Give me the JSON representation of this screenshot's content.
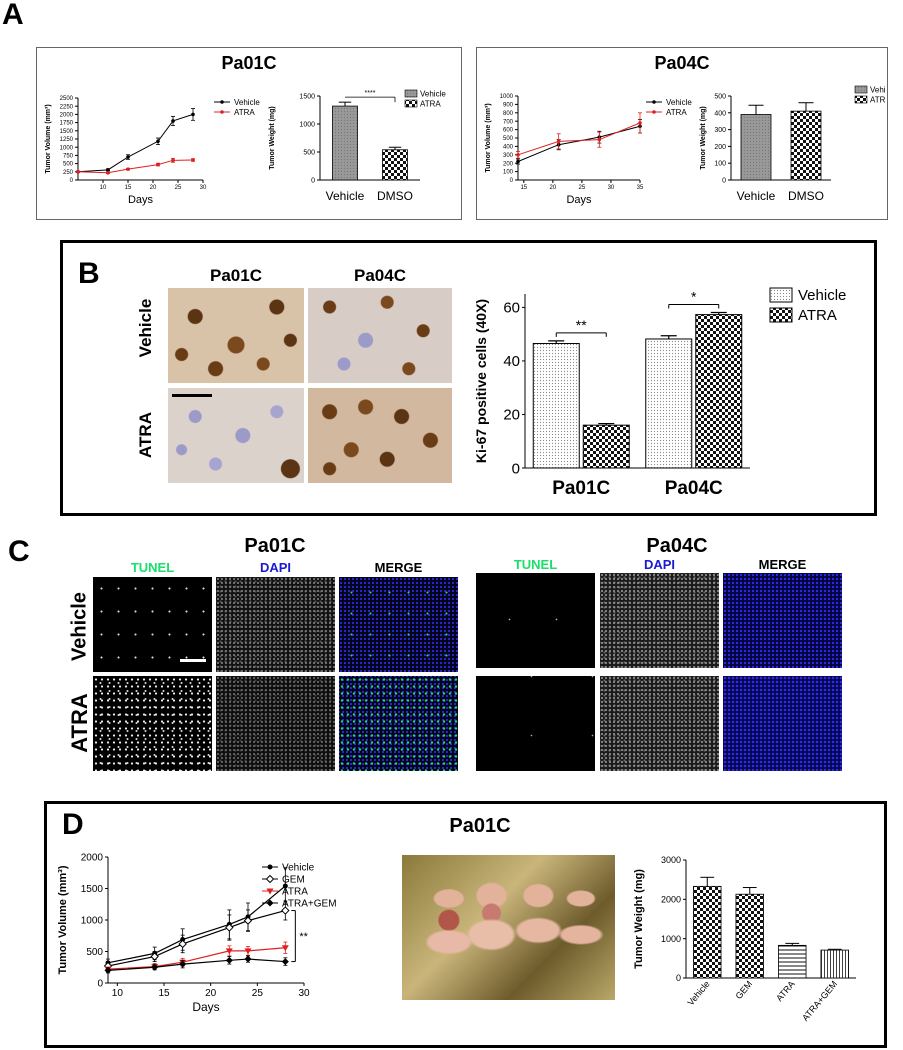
{
  "panels": {
    "a": {
      "letter": "A"
    },
    "b": {
      "letter": "B"
    },
    "c": {
      "letter": "C"
    },
    "d": {
      "letter": "D"
    }
  },
  "panelA": {
    "left_title": "Pa01C",
    "right_title": "Pa04C"
  },
  "panelB": {
    "col1": "Pa01C",
    "col2": "Pa04C",
    "row1": "Vehicle",
    "row2": "ATRA"
  },
  "panelC": {
    "title_left": "Pa01C",
    "title_right": "Pa04C",
    "col_tunel": "TUNEL",
    "col_dapi": "DAPI",
    "col_merge": "MERGE",
    "row1": "Vehicle",
    "row2": "ATRA",
    "colors": {
      "tunel": "#19e06a",
      "dapi": "#1a1ad0"
    }
  },
  "panelD": {
    "title": "Pa01C"
  },
  "chart_data": [
    {
      "id": "A1",
      "type": "line",
      "xlabel": "Days",
      "ylabel": "Tumor Volume (mm³)",
      "xlim": [
        5,
        30
      ],
      "ylim": [
        0,
        2500
      ],
      "xticks": [
        10,
        15,
        20,
        25,
        30
      ],
      "yticks": [
        0,
        250,
        500,
        750,
        1000,
        1250,
        1500,
        1750,
        2000,
        2250,
        2500
      ],
      "legend_position": "top-right",
      "series": [
        {
          "name": "Vehicle",
          "color": "#000000",
          "x": [
            5,
            11,
            15,
            21,
            24,
            28
          ],
          "y": [
            250,
            310,
            700,
            1180,
            1800,
            2000
          ],
          "err": [
            20,
            30,
            70,
            100,
            140,
            180
          ]
        },
        {
          "name": "ATRA",
          "color": "#e02020",
          "x": [
            5,
            11,
            15,
            21,
            24,
            28
          ],
          "y": [
            250,
            220,
            330,
            470,
            600,
            610
          ],
          "err": [
            15,
            20,
            25,
            40,
            60,
            40
          ]
        }
      ]
    },
    {
      "id": "A2",
      "type": "bar",
      "categories": [
        "Vehicle",
        "DMSO"
      ],
      "ylabel": "Tumor Weight (mg)",
      "ylim": [
        0,
        1500
      ],
      "yticks": [
        0,
        500,
        1000,
        1500
      ],
      "values": [
        1320,
        540
      ],
      "err": [
        70,
        45
      ],
      "legend": [
        "Vehicle",
        "ATRA"
      ],
      "significance": "****"
    },
    {
      "id": "A3",
      "type": "line",
      "xlabel": "Days",
      "ylabel": "Tumor Volume (mm³)",
      "xlim": [
        14,
        35
      ],
      "ylim": [
        0,
        1000
      ],
      "xticks": [
        15,
        20,
        25,
        30,
        35
      ],
      "yticks": [
        0,
        100,
        200,
        300,
        400,
        500,
        600,
        700,
        800,
        900,
        1000
      ],
      "legend_position": "top-right",
      "series": [
        {
          "name": "Vehicle",
          "color": "#000000",
          "x": [
            14,
            21,
            28,
            35
          ],
          "y": [
            220,
            420,
            510,
            640
          ],
          "err": [
            30,
            60,
            70,
            80
          ]
        },
        {
          "name": "ATRA",
          "color": "#e02020",
          "x": [
            14,
            21,
            28,
            35
          ],
          "y": [
            300,
            460,
            480,
            680
          ],
          "err": [
            40,
            90,
            90,
            120
          ]
        }
      ]
    },
    {
      "id": "A4",
      "type": "bar",
      "categories": [
        "Vehicle",
        "DMSO"
      ],
      "ylabel": "Tumor Weight (mg)",
      "ylim": [
        0,
        500
      ],
      "yticks": [
        0,
        100,
        200,
        300,
        400,
        500
      ],
      "values": [
        390,
        410
      ],
      "err": [
        55,
        50
      ],
      "legend": [
        "Vehicle",
        "ATRA"
      ]
    },
    {
      "id": "B1",
      "type": "bar",
      "categories": [
        "Pa01C",
        "Pa04C"
      ],
      "ylabel": "Ki-67 positive cells (40X)",
      "ylim": [
        0,
        65
      ],
      "yticks": [
        0,
        20,
        40,
        60
      ],
      "series": [
        {
          "name": "Vehicle",
          "values": [
            46.5,
            48.2
          ],
          "err": [
            1,
            1.2
          ]
        },
        {
          "name": "ATRA",
          "values": [
            16,
            57.3
          ],
          "err": [
            0.6,
            0.8
          ]
        }
      ],
      "significance": [
        "**",
        "*"
      ]
    },
    {
      "id": "D1",
      "type": "line",
      "xlabel": "Days",
      "ylabel": "Tumor Volume (mm³)",
      "xlim": [
        9,
        30
      ],
      "ylim": [
        0,
        2000
      ],
      "xticks": [
        10,
        15,
        20,
        25,
        30
      ],
      "yticks": [
        0,
        500,
        1000,
        1500,
        2000
      ],
      "significance": "**",
      "series": [
        {
          "name": "Vehicle",
          "color": "#000000",
          "marker": "circle",
          "x": [
            9,
            14,
            17,
            22,
            24,
            28
          ],
          "y": [
            320,
            470,
            690,
            930,
            1050,
            1540
          ],
          "err": [
            60,
            100,
            170,
            230,
            220,
            290
          ]
        },
        {
          "name": "GEM",
          "color": "#000000",
          "marker": "open-diamond",
          "x": [
            9,
            14,
            17,
            22,
            24,
            28
          ],
          "y": [
            270,
            420,
            620,
            880,
            990,
            1150
          ],
          "err": [
            60,
            80,
            140,
            200,
            170,
            150
          ]
        },
        {
          "name": "ATRA",
          "color": "#e02020",
          "marker": "triangle-down",
          "x": [
            9,
            14,
            17,
            22,
            24,
            28
          ],
          "y": [
            220,
            260,
            330,
            510,
            510,
            560
          ],
          "err": [
            30,
            50,
            60,
            80,
            70,
            90
          ]
        },
        {
          "name": "ATRA+GEM",
          "color": "#000000",
          "marker": "diamond",
          "x": [
            9,
            14,
            17,
            22,
            24,
            28
          ],
          "y": [
            200,
            250,
            300,
            360,
            380,
            340
          ],
          "err": [
            40,
            40,
            60,
            60,
            50,
            60
          ]
        }
      ]
    },
    {
      "id": "D2",
      "type": "bar",
      "categories": [
        "Vehicle",
        "GEM",
        "ATRA",
        "ATRA+GEM"
      ],
      "ylabel": "Tumor Weight (mg)",
      "ylim": [
        0,
        3000
      ],
      "yticks": [
        0,
        1000,
        2000,
        3000
      ],
      "values": [
        2330,
        2130,
        830,
        710
      ],
      "err": [
        230,
        170,
        50,
        20
      ]
    }
  ]
}
